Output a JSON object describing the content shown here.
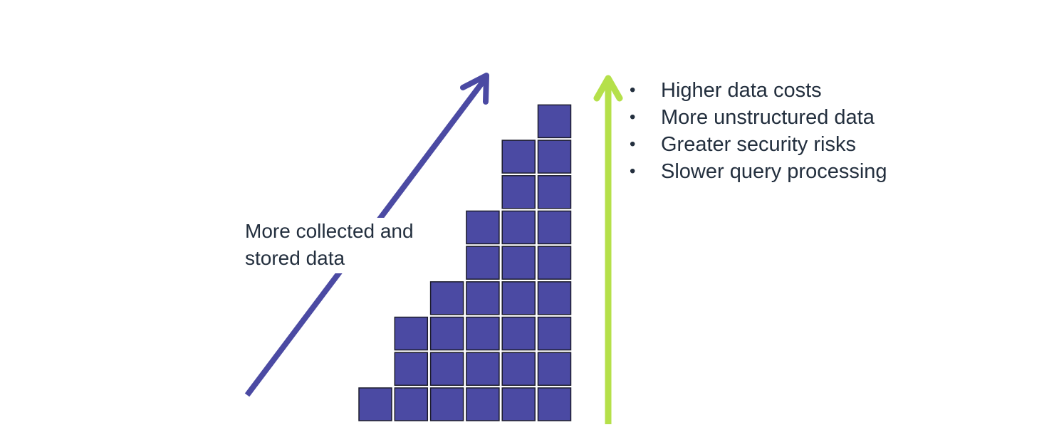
{
  "diagram": {
    "block_columns": [
      1,
      3,
      4,
      6,
      8,
      9
    ],
    "colors": {
      "block_fill": "#4b4aa3",
      "block_stroke": "#1c1c2c",
      "growth_arrow": "#4b4aa3",
      "impact_arrow": "#b5e04a",
      "text": "#232f3e"
    },
    "growth_label": {
      "line1": "More collected and",
      "line2": "stored data"
    },
    "impacts": [
      {
        "bullet": "•",
        "label": "Higher data costs"
      },
      {
        "bullet": "•",
        "label": "More unstructured data"
      },
      {
        "bullet": "•",
        "label": "Greater security risks"
      },
      {
        "bullet": "•",
        "label": "Slower query processing"
      }
    ]
  }
}
